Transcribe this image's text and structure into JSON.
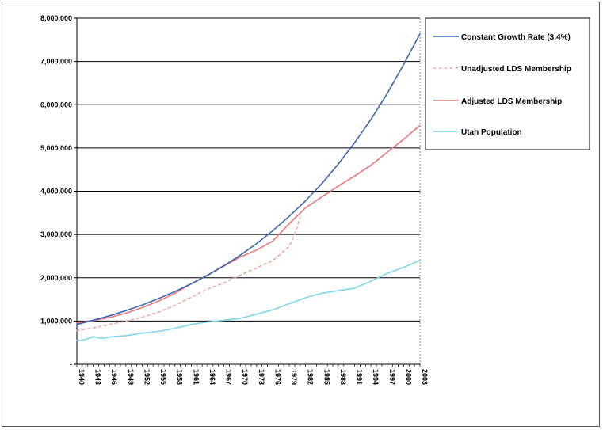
{
  "chart_data": {
    "type": "line",
    "title": "",
    "xlabel": "",
    "ylabel": "",
    "ylim": [
      0,
      8000000
    ],
    "yticks": [
      0,
      1000000,
      2000000,
      3000000,
      4000000,
      5000000,
      6000000,
      7000000,
      8000000
    ],
    "ytick_labels": [
      "-",
      "1,000,000",
      "2,000,000",
      "3,000,000",
      "4,000,000",
      "5,000,000",
      "6,000,000",
      "7,000,000",
      "8,000,000"
    ],
    "xlim": [
      1940,
      2003
    ],
    "xticks": [
      1940,
      1943,
      1946,
      1949,
      1952,
      1955,
      1958,
      1961,
      1964,
      1967,
      1970,
      1973,
      1976,
      1979,
      1982,
      1985,
      1988,
      1991,
      1994,
      1997,
      2000,
      2003
    ],
    "xtick_labels": [
      "1940",
      "1943",
      "1946",
      "1949",
      "1952",
      "1955",
      "1958",
      "1961",
      "1964",
      "1967",
      "1970",
      "1973",
      "1976",
      "1979",
      "1982",
      "1985",
      "1988",
      "1991",
      "1994",
      "1997",
      "2000",
      "2003"
    ],
    "grid": true,
    "legend_position": "right",
    "series": [
      {
        "name": "Constant Growth Rate (3.4%)",
        "color": "#3a66b4",
        "dash": "solid",
        "x": [
          1940,
          1943,
          1946,
          1949,
          1952,
          1955,
          1958,
          1961,
          1964,
          1967,
          1970,
          1973,
          1976,
          1979,
          1982,
          1985,
          1988,
          1991,
          1994,
          1997,
          2000,
          2003
        ],
        "y": [
          920000,
          1020000,
          1120000,
          1240000,
          1370000,
          1520000,
          1680000,
          1860000,
          2060000,
          2280000,
          2520000,
          2790000,
          3090000,
          3420000,
          3780000,
          4180000,
          4630000,
          5120000,
          5660000,
          6260000,
          6930000,
          7640000
        ]
      },
      {
        "name": "Unadjusted LDS Membership",
        "color": "#f0a8a8",
        "dash": "dashed",
        "x": [
          1940,
          1943,
          1946,
          1949,
          1952,
          1955,
          1958,
          1961,
          1964,
          1967,
          1970,
          1973,
          1976,
          1979,
          1980,
          1981
        ],
        "y": [
          780000,
          840000,
          920000,
          1000000,
          1090000,
          1200000,
          1360000,
          1550000,
          1740000,
          1880000,
          2060000,
          2230000,
          2400000,
          2720000,
          3000000,
          3400000
        ]
      },
      {
        "name": "Adjusted LDS Membership",
        "color": "#e87878",
        "dash": "solid",
        "x": [
          1940,
          1943,
          1946,
          1949,
          1952,
          1955,
          1958,
          1961,
          1964,
          1967,
          1970,
          1973,
          1976,
          1979,
          1982,
          1985,
          1988,
          1991,
          1994,
          1997,
          2000,
          2003
        ],
        "y": [
          960000,
          1010000,
          1080000,
          1180000,
          1310000,
          1460000,
          1640000,
          1860000,
          2060000,
          2270000,
          2480000,
          2640000,
          2850000,
          3250000,
          3620000,
          3870000,
          4120000,
          4350000,
          4600000,
          4900000,
          5200000,
          5520000
        ]
      },
      {
        "name": "Utah Population",
        "color": "#7fd6e8",
        "dash": "solid",
        "x": [
          1940,
          1941,
          1942,
          1943,
          1944,
          1945,
          1946,
          1949,
          1952,
          1955,
          1958,
          1961,
          1964,
          1967,
          1970,
          1973,
          1976,
          1979,
          1982,
          1985,
          1988,
          1991,
          1994,
          1997,
          2000,
          2003
        ],
        "y": [
          550000,
          555000,
          590000,
          640000,
          610000,
          595000,
          630000,
          660000,
          720000,
          760000,
          830000,
          920000,
          980000,
          1020000,
          1060000,
          1160000,
          1260000,
          1400000,
          1540000,
          1640000,
          1700000,
          1760000,
          1920000,
          2100000,
          2240000,
          2400000
        ]
      }
    ]
  }
}
